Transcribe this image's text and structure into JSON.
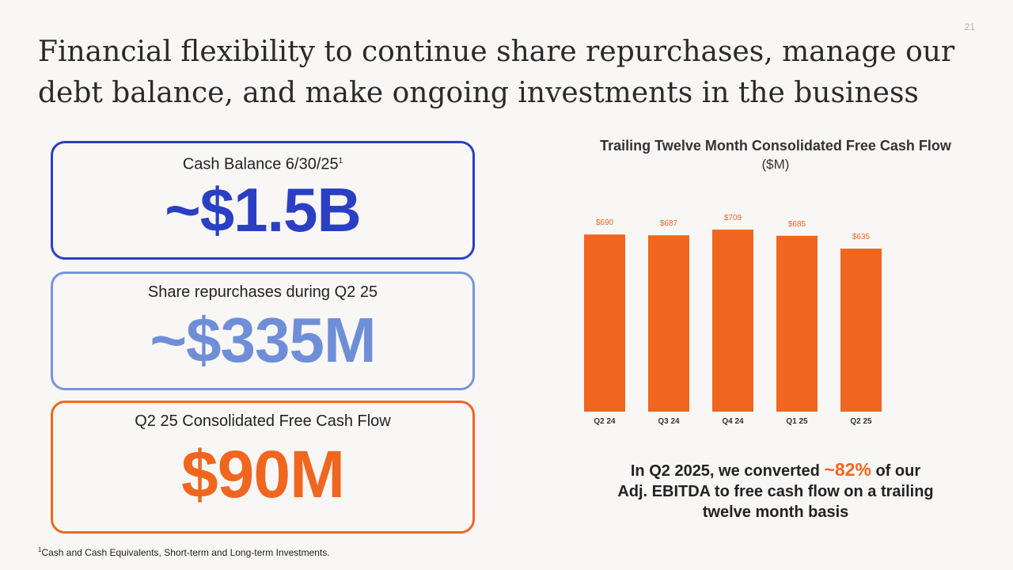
{
  "page_number": "21",
  "title": "Financial flexibility to continue share repurchases, manage our debt balance, and make ongoing investments in the business",
  "cards": [
    {
      "label": "Cash Balance 6/30/25",
      "superscript": "1",
      "value": "~$1.5B",
      "color": "#2b3fc4"
    },
    {
      "label": "Share repurchases during Q2 25",
      "value": "~$335M",
      "color": "#6f8ed8"
    },
    {
      "label": "Q2 25 Consolidated Free Cash Flow",
      "value": "$90M",
      "color": "#f0661f"
    }
  ],
  "footnote": {
    "marker": "1",
    "text": "Cash and Cash Equivalents, Short-term and Long-term Investments."
  },
  "callout": {
    "line1_pre": "In Q2 2025, we converted ",
    "highlight": "~82%",
    "line1_post": " of our",
    "line2": "Adj. EBITDA to free cash flow on a trailing",
    "line3": "twelve month basis"
  },
  "chart_data": {
    "type": "bar",
    "title": "Trailing Twelve Month Consolidated Free Cash Flow",
    "unit_label": "($M)",
    "categories": [
      "Q2 24",
      "Q3 24",
      "Q4 24",
      "Q1 25",
      "Q2 25"
    ],
    "values": [
      690,
      687,
      709,
      685,
      635
    ],
    "data_labels": [
      "$690",
      "$687",
      "$709",
      "$685",
      "$635"
    ],
    "ylim": [
      0,
      740
    ],
    "bar_color": "#f0661f",
    "grid": false
  }
}
